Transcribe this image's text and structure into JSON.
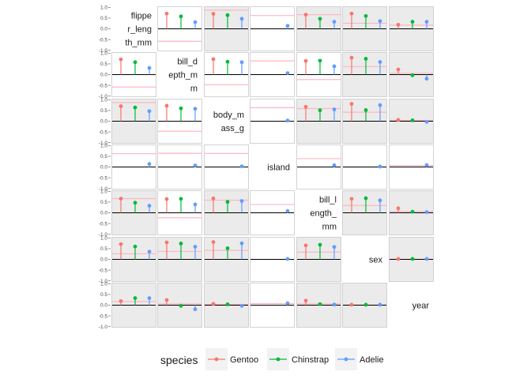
{
  "chart_data": {
    "type": "pairs-lollipop-matrix",
    "variables": [
      "flipper_length_mm",
      "bill_depth_mm",
      "body_mass_g",
      "island",
      "bill_length_mm",
      "sex",
      "year"
    ],
    "diagonal_labels": [
      [
        "flippe",
        "r_leng",
        "th_mm"
      ],
      [
        "bill_d",
        "epth_m",
        "m"
      ],
      [
        "body_m",
        "ass_g"
      ],
      [
        "island"
      ],
      [
        "bill_l",
        "ength_",
        "mm"
      ],
      [
        "sex"
      ],
      [
        "year"
      ]
    ],
    "y_ticks": [
      "1.0",
      "0.5",
      "0.0",
      "-0.5",
      "-1.0"
    ],
    "y_tick_values": [
      1.0,
      0.5,
      0.0,
      -0.5,
      -1.0
    ],
    "ylim": [
      -1.05,
      1.05
    ],
    "series_names": [
      "Gentoo",
      "Chinstrap",
      "Adelie"
    ],
    "series_colors": [
      "#F8766D",
      "#00BA38",
      "#619CFF"
    ],
    "reference_line_color": "#FFB6C1",
    "shaded_panel_color": "#EBEBEB",
    "legend": {
      "title": "species",
      "position": "bottom"
    },
    "cells": [
      {
        "row": 0,
        "col": 1,
        "values": [
          0.71,
          0.58,
          0.31
        ],
        "overall": -0.58,
        "shaded": false
      },
      {
        "row": 0,
        "col": 2,
        "values": [
          0.7,
          0.64,
          0.47
        ],
        "overall": 0.87,
        "shaded": true
      },
      {
        "row": 0,
        "col": 3,
        "values": [
          0.0,
          0.0,
          0.14
        ],
        "overall": 0.62,
        "shaded": false
      },
      {
        "row": 0,
        "col": 4,
        "values": [
          0.66,
          0.47,
          0.33
        ],
        "overall": 0.66,
        "shaded": true
      },
      {
        "row": 0,
        "col": 5,
        "values": [
          0.71,
          0.6,
          0.36
        ],
        "overall": 0.26,
        "shaded": true
      },
      {
        "row": 0,
        "col": 6,
        "values": [
          0.19,
          0.33,
          0.33
        ],
        "overall": 0.17,
        "shaded": true
      },
      {
        "row": 1,
        "col": 0,
        "values": [
          0.71,
          0.58,
          0.31
        ],
        "overall": -0.58,
        "shaded": false
      },
      {
        "row": 1,
        "col": 2,
        "values": [
          0.72,
          0.6,
          0.58
        ],
        "overall": -0.47,
        "shaded": false
      },
      {
        "row": 1,
        "col": 3,
        "values": [
          0.0,
          0.0,
          0.07
        ],
        "overall": 0.64,
        "shaded": false
      },
      {
        "row": 1,
        "col": 4,
        "values": [
          0.64,
          0.65,
          0.39
        ],
        "overall": -0.23,
        "shaded": false
      },
      {
        "row": 1,
        "col": 5,
        "values": [
          0.79,
          0.74,
          0.59
        ],
        "overall": 0.37,
        "shaded": true
      },
      {
        "row": 1,
        "col": 6,
        "values": [
          0.24,
          -0.03,
          -0.19
        ],
        "overall": 0.06,
        "shaded": true
      },
      {
        "row": 2,
        "col": 0,
        "values": [
          0.7,
          0.64,
          0.47
        ],
        "overall": 0.87,
        "shaded": true
      },
      {
        "row": 2,
        "col": 1,
        "values": [
          0.72,
          0.6,
          0.58
        ],
        "overall": -0.47,
        "shaded": false
      },
      {
        "row": 2,
        "col": 3,
        "values": [
          0.0,
          0.0,
          0.03
        ],
        "overall": 0.63,
        "shaded": false
      },
      {
        "row": 2,
        "col": 4,
        "values": [
          0.67,
          0.51,
          0.55
        ],
        "overall": 0.59,
        "shaded": true
      },
      {
        "row": 2,
        "col": 5,
        "values": [
          0.81,
          0.52,
          0.75
        ],
        "overall": 0.42,
        "shaded": true
      },
      {
        "row": 2,
        "col": 6,
        "values": [
          0.06,
          0.04,
          -0.03
        ],
        "overall": 0.04,
        "shaded": true
      },
      {
        "row": 3,
        "col": 0,
        "values": [
          0.0,
          0.0,
          0.14
        ],
        "overall": 0.62,
        "shaded": false
      },
      {
        "row": 3,
        "col": 1,
        "values": [
          0.0,
          0.0,
          0.07
        ],
        "overall": 0.64,
        "shaded": false
      },
      {
        "row": 3,
        "col": 2,
        "values": [
          0.0,
          0.0,
          0.03
        ],
        "overall": 0.63,
        "shaded": false
      },
      {
        "row": 3,
        "col": 4,
        "values": [
          0.0,
          0.0,
          0.08
        ],
        "overall": 0.39,
        "shaded": false
      },
      {
        "row": 3,
        "col": 5,
        "values": [
          0.0,
          0.0,
          0.02
        ],
        "overall": 0.0,
        "shaded": false
      },
      {
        "row": 3,
        "col": 6,
        "values": [
          0.0,
          0.0,
          0.09
        ],
        "overall": 0.07,
        "shaded": false
      },
      {
        "row": 4,
        "col": 0,
        "values": [
          0.66,
          0.47,
          0.33
        ],
        "overall": 0.66,
        "shaded": true
      },
      {
        "row": 4,
        "col": 1,
        "values": [
          0.64,
          0.65,
          0.39
        ],
        "overall": -0.23,
        "shaded": false
      },
      {
        "row": 4,
        "col": 2,
        "values": [
          0.67,
          0.51,
          0.55
        ],
        "overall": 0.59,
        "shaded": true
      },
      {
        "row": 4,
        "col": 3,
        "values": [
          0.0,
          0.0,
          0.08
        ],
        "overall": 0.39,
        "shaded": false
      },
      {
        "row": 4,
        "col": 5,
        "values": [
          0.65,
          0.68,
          0.58
        ],
        "overall": 0.34,
        "shaded": true
      },
      {
        "row": 4,
        "col": 6,
        "values": [
          0.21,
          0.05,
          0.03
        ],
        "overall": 0.06,
        "shaded": true
      },
      {
        "row": 5,
        "col": 0,
        "values": [
          0.71,
          0.6,
          0.36
        ],
        "overall": 0.26,
        "shaded": true
      },
      {
        "row": 5,
        "col": 1,
        "values": [
          0.79,
          0.74,
          0.59
        ],
        "overall": 0.37,
        "shaded": true
      },
      {
        "row": 5,
        "col": 2,
        "values": [
          0.81,
          0.52,
          0.75
        ],
        "overall": 0.42,
        "shaded": true
      },
      {
        "row": 5,
        "col": 3,
        "values": [
          0.0,
          0.0,
          0.02
        ],
        "overall": 0.0,
        "shaded": false
      },
      {
        "row": 5,
        "col": 4,
        "values": [
          0.65,
          0.68,
          0.58
        ],
        "overall": 0.34,
        "shaded": true
      },
      {
        "row": 5,
        "col": 6,
        "values": [
          0.02,
          0.02,
          0.02
        ],
        "overall": 0.01,
        "shaded": true
      },
      {
        "row": 6,
        "col": 0,
        "values": [
          0.19,
          0.33,
          0.33
        ],
        "overall": 0.17,
        "shaded": true
      },
      {
        "row": 6,
        "col": 1,
        "values": [
          0.24,
          -0.03,
          -0.19
        ],
        "overall": 0.06,
        "shaded": true
      },
      {
        "row": 6,
        "col": 2,
        "values": [
          0.06,
          0.04,
          -0.03
        ],
        "overall": 0.04,
        "shaded": true
      },
      {
        "row": 6,
        "col": 3,
        "values": [
          0.0,
          0.0,
          0.09
        ],
        "overall": 0.07,
        "shaded": false
      },
      {
        "row": 6,
        "col": 4,
        "values": [
          0.21,
          0.05,
          0.03
        ],
        "overall": 0.06,
        "shaded": true
      },
      {
        "row": 6,
        "col": 5,
        "values": [
          0.02,
          0.02,
          0.02
        ],
        "overall": 0.01,
        "shaded": true
      }
    ]
  }
}
